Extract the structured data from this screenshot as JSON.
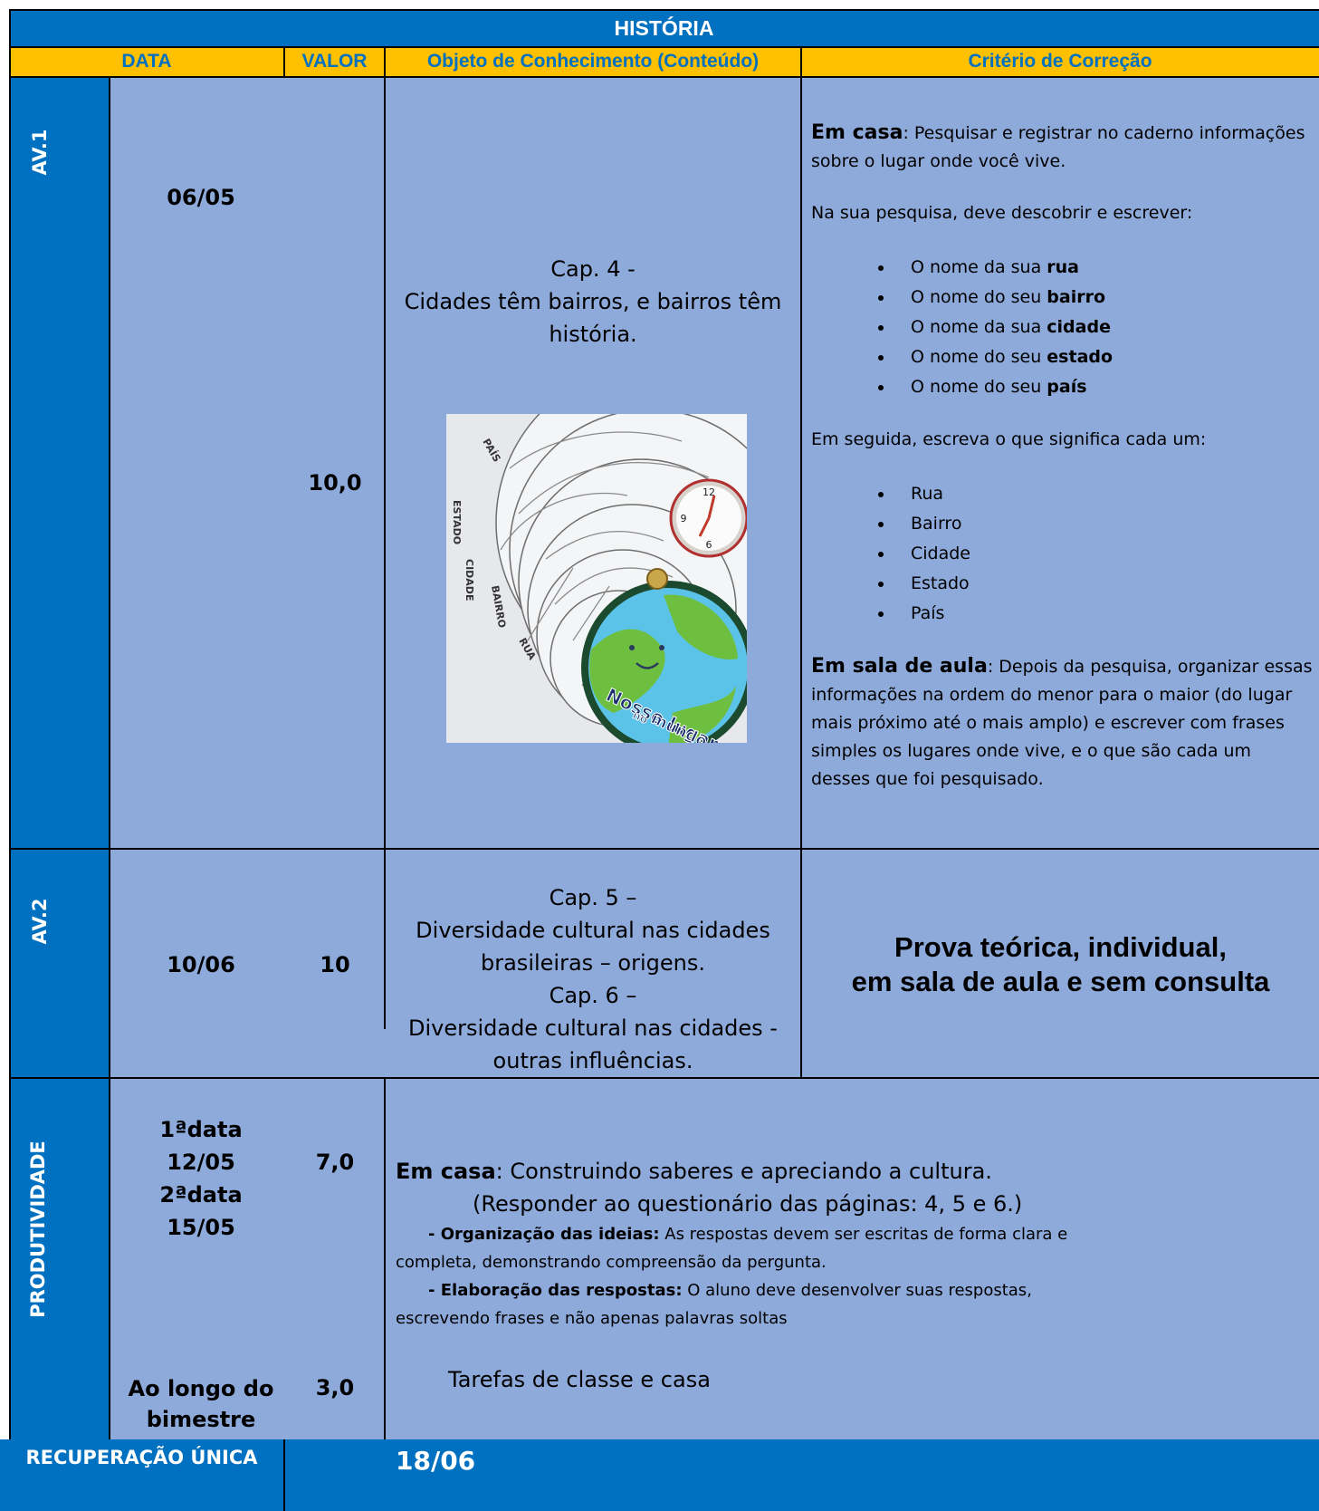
{
  "title": "HISTÓRIA",
  "headers": {
    "data": "DATA",
    "valor": "VALOR",
    "objeto": "Objeto de Conhecimento (Conteúdo)",
    "criterio": "Critério de Correção"
  },
  "av1": {
    "label": "AV.1",
    "date": "06/05",
    "value": "10,0",
    "content": [
      "Cap. 4 -",
      "Cidades têm bairros, e bairros têm",
      "história."
    ],
    "image": {
      "alt": "Roda de círculos Nosso lugar no mundo",
      "labels": [
        "PAÍS",
        "ESTADO",
        "CIDADE",
        "BAIRRO",
        "RUA"
      ],
      "badge": [
        "Nosso lugar",
        "no",
        "mundo"
      ],
      "clock": [
        "12",
        "9",
        "6"
      ]
    },
    "criteria": {
      "home_label": "Em casa",
      "home_text": ": Pesquisar e registrar no caderno informações sobre o lugar onde você vive.",
      "intro": "Na sua pesquisa, deve descobrir e escrever:",
      "items": [
        {
          "pre": "O nome da sua ",
          "bold": "rua"
        },
        {
          "pre": "O nome do seu ",
          "bold": "bairro"
        },
        {
          "pre": "O nome da sua ",
          "bold": "cidade"
        },
        {
          "pre": "O nome do seu ",
          "bold": "estado"
        },
        {
          "pre": "O nome do seu ",
          "bold": "país"
        }
      ],
      "then": "Em seguida, escreva o que significa cada um:",
      "list2": [
        "Rua",
        "Bairro",
        "Cidade",
        "Estado",
        "País"
      ],
      "class_label": "Em sala de aula",
      "class_text": ": Depois da pesquisa, organizar essas informações na ordem do menor para o maior (do lugar mais próximo até o mais amplo) e escrever com frases simples os lugares onde vive, e o que são cada um desses que foi pesquisado."
    }
  },
  "av2": {
    "label": "AV.2",
    "date": "10/06",
    "value": "10",
    "content": [
      "Cap. 5 –",
      "Diversidade cultural nas cidades",
      "brasileiras – origens.",
      "Cap. 6 –",
      "Diversidade cultural nas cidades -",
      "outras influências."
    ],
    "criteria": [
      "Prova teórica, individual,",
      "em sala de aula e sem consulta"
    ]
  },
  "produtividade": {
    "label": "PRODUTIVIDADE",
    "dates": [
      "1ªdata",
      "12/05",
      "2ªdata",
      "15/05"
    ],
    "value1": "7,0",
    "home_label": "Em casa",
    "home_text": ": Construindo saberes e apreciando a cultura.",
    "instruction": "(Responder ao questionário das páginas: 4, 5 e 6.)",
    "org_dash": "- ",
    "org_label": "Organização das ideias:",
    "org_text1": " As respostas devem ser escritas de forma clara e",
    "org_text2": "completa, demonstrando compreensão da pergunta.",
    "elab_label": "- Elaboração das respostas:",
    "elab_text1": " O aluno deve desenvolver suas respostas,",
    "elab_text2": "escrevendo frases e não apenas palavras soltas",
    "date2": [
      "Ao longo do",
      "bimestre"
    ],
    "value2": "3,0",
    "tasks": "Tarefas de classe e casa"
  },
  "recuperacao": {
    "label": "RECUPERAÇÃO ÚNICA",
    "date": "18/06"
  },
  "colors": {
    "blue": "#0070c0",
    "lavender": "#8eaadb",
    "gold": "#ffc000"
  }
}
